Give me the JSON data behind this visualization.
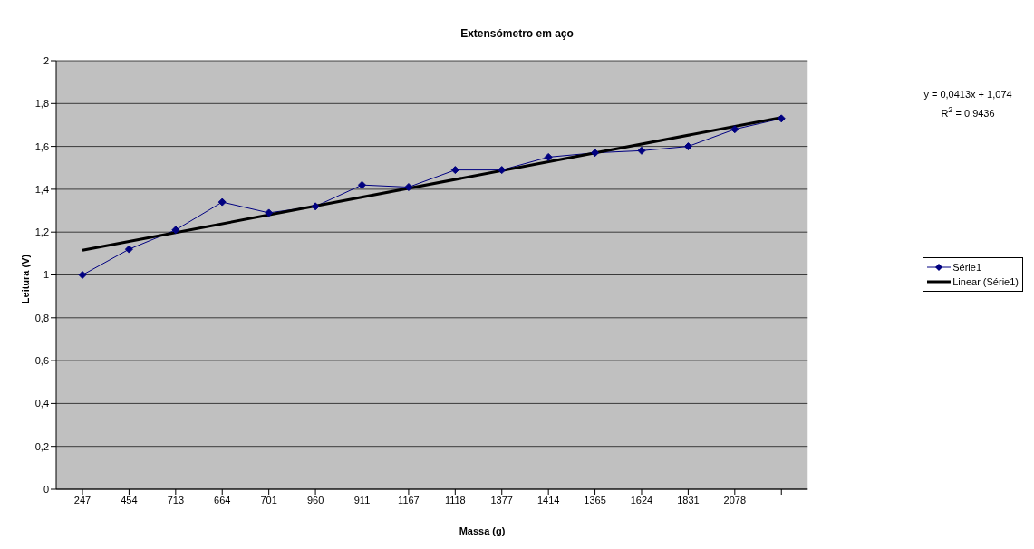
{
  "chart_data": {
    "type": "line",
    "title": "Extensómetro em aço",
    "xlabel": "Massa (g)",
    "ylabel": "Leitura (V)",
    "categories": [
      "247",
      "454",
      "713",
      "664",
      "701",
      "960",
      "911",
      "1167",
      "1118",
      "1377",
      "1414",
      "1365",
      "1624",
      "1831",
      "2078",
      null
    ],
    "series": [
      {
        "name": "Série1",
        "color": "#000080",
        "values": [
          1.0,
          1.12,
          1.21,
          1.34,
          1.29,
          1.32,
          1.42,
          1.41,
          1.49,
          1.49,
          1.55,
          1.57,
          1.58,
          1.6,
          1.68,
          1.73
        ]
      },
      {
        "name": "Linear (Série1)",
        "color": "#000000",
        "marker": "none",
        "values": [
          1.115,
          null,
          null,
          null,
          null,
          null,
          null,
          null,
          null,
          null,
          null,
          null,
          null,
          null,
          null,
          1.735
        ]
      }
    ],
    "ylim": [
      0,
      2
    ],
    "yticks": [
      {
        "value": 0,
        "label": "0"
      },
      {
        "value": 0.2,
        "label": "0,2"
      },
      {
        "value": 0.4,
        "label": "0,4"
      },
      {
        "value": 0.6,
        "label": "0,6"
      },
      {
        "value": 0.8,
        "label": "0,8"
      },
      {
        "value": 1,
        "label": "1"
      },
      {
        "value": 1.2,
        "label": "1,2"
      },
      {
        "value": 1.4,
        "label": "1,4"
      },
      {
        "value": 1.6,
        "label": "1,6"
      },
      {
        "value": 1.8,
        "label": "1,8"
      },
      {
        "value": 2,
        "label": "2"
      }
    ],
    "annotations": [
      "y = 0,0413x + 1,074",
      "R$^{2}$ = 0,9436"
    ],
    "grid": "y",
    "legend": "right",
    "marker": "diamond",
    "line_style": "solid"
  }
}
